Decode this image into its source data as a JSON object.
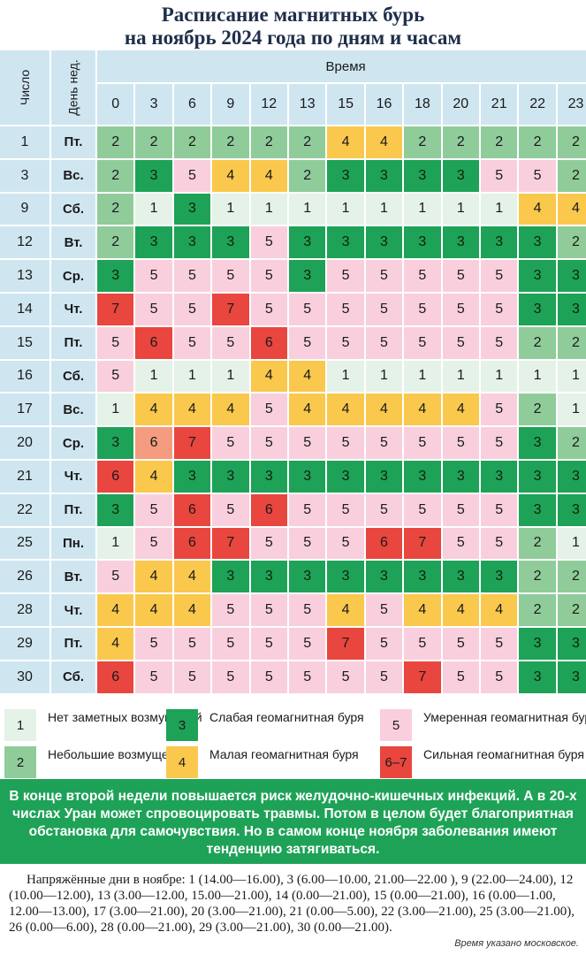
{
  "title": {
    "line1": "Расписание магнитных бурь",
    "line2": "на ноябрь 2024 года по дням и часам"
  },
  "chart_data": {
    "type": "table",
    "header": {
      "day_label": "Число",
      "weekday_label": "День нед.",
      "time_label": "Время"
    },
    "hours": [
      "0",
      "3",
      "6",
      "9",
      "12",
      "13",
      "15",
      "16",
      "18",
      "20",
      "21",
      "22",
      "23"
    ],
    "rows": [
      {
        "day": "1",
        "weekday": "Пт.",
        "values": [
          2,
          2,
          2,
          2,
          2,
          2,
          4,
          4,
          2,
          2,
          2,
          2,
          2
        ]
      },
      {
        "day": "3",
        "weekday": "Вс.",
        "values": [
          2,
          3,
          5,
          4,
          4,
          2,
          3,
          3,
          3,
          3,
          5,
          5,
          2
        ]
      },
      {
        "day": "9",
        "weekday": "Сб.",
        "values": [
          2,
          1,
          3,
          1,
          1,
          1,
          1,
          1,
          1,
          1,
          1,
          4,
          4
        ]
      },
      {
        "day": "12",
        "weekday": "Вт.",
        "values": [
          2,
          3,
          3,
          3,
          5,
          3,
          3,
          3,
          3,
          3,
          3,
          3,
          2
        ]
      },
      {
        "day": "13",
        "weekday": "Ср.",
        "values": [
          3,
          5,
          5,
          5,
          5,
          3,
          5,
          5,
          5,
          5,
          5,
          3,
          3
        ]
      },
      {
        "day": "14",
        "weekday": "Чт.",
        "values": [
          7,
          5,
          5,
          7,
          5,
          5,
          5,
          5,
          5,
          5,
          5,
          3,
          3
        ]
      },
      {
        "day": "15",
        "weekday": "Пт.",
        "values": [
          5,
          6,
          5,
          5,
          6,
          5,
          5,
          5,
          5,
          5,
          5,
          2,
          2
        ]
      },
      {
        "day": "16",
        "weekday": "Сб.",
        "values": [
          5,
          1,
          1,
          1,
          4,
          4,
          1,
          1,
          1,
          1,
          1,
          1,
          1
        ]
      },
      {
        "day": "17",
        "weekday": "Вс.",
        "values": [
          1,
          4,
          4,
          4,
          5,
          4,
          4,
          4,
          4,
          4,
          5,
          2,
          1
        ]
      },
      {
        "day": "20",
        "weekday": "Ср.",
        "values": [
          3,
          6,
          7,
          5,
          5,
          5,
          5,
          5,
          5,
          5,
          5,
          3,
          2
        ]
      },
      {
        "day": "21",
        "weekday": "Чт.",
        "values": [
          6,
          4,
          3,
          3,
          3,
          3,
          3,
          3,
          3,
          3,
          3,
          3,
          3
        ]
      },
      {
        "day": "22",
        "weekday": "Пт.",
        "values": [
          3,
          5,
          6,
          5,
          6,
          5,
          5,
          5,
          5,
          5,
          5,
          3,
          3
        ]
      },
      {
        "day": "25",
        "weekday": "Пн.",
        "values": [
          1,
          5,
          6,
          7,
          5,
          5,
          5,
          6,
          7,
          5,
          5,
          2,
          1
        ]
      },
      {
        "day": "26",
        "weekday": "Вт.",
        "values": [
          5,
          4,
          4,
          3,
          3,
          3,
          3,
          3,
          3,
          3,
          3,
          2,
          2
        ]
      },
      {
        "day": "28",
        "weekday": "Чт.",
        "values": [
          4,
          4,
          4,
          5,
          5,
          5,
          4,
          5,
          4,
          4,
          4,
          2,
          2
        ]
      },
      {
        "day": "29",
        "weekday": "Пт.",
        "values": [
          4,
          5,
          5,
          5,
          5,
          5,
          7,
          5,
          5,
          5,
          5,
          3,
          3
        ]
      },
      {
        "day": "30",
        "weekday": "Сб.",
        "values": [
          6,
          5,
          5,
          5,
          5,
          5,
          5,
          5,
          7,
          5,
          5,
          3,
          3
        ]
      }
    ],
    "light_sixes": [
      [
        9,
        1
      ]
    ],
    "colors": {
      "1": "#e4f2e8",
      "2": "#8fcc9a",
      "3": "#1ea257",
      "4": "#fac84d",
      "5": "#f9cfdd",
      "6": "#e8463e",
      "7": "#e8463e",
      "6-light": "#f49b80"
    }
  },
  "legend": [
    {
      "code": "1",
      "label": "Нет заметных возмущений",
      "color": "#e4f2e8"
    },
    {
      "code": "3",
      "label": "Слабая геомагнитная буря",
      "color": "#1ea257"
    },
    {
      "code": "5",
      "label": "Умеренная геомагнитная буря",
      "color": "#f9cfdd"
    },
    {
      "code": "2",
      "label": "Небольшие возмущения",
      "color": "#8fcc9a"
    },
    {
      "code": "4",
      "label": "Малая геомагнитная буря",
      "color": "#fac84d"
    },
    {
      "code": "6–7",
      "label": "Сильная геомагнитная буря",
      "color": "#e8463e"
    }
  ],
  "note": "В конце второй недели повышается риск желудочно-кишечных инфекций. А в 20-х числах Уран может спровоцировать травмы. Потом в целом будет благоприятная обстановка для самочувствия. Но в самом конце ноября заболевания имеют тенденцию затягиваться.",
  "tense_days": "Напряжённые дни в ноябре: 1 (14.00—16.00), 3 (6.00—10.00, 21.00—22.00 ), 9 (22.00—24.00), 12 (10.00—12.00), 13 (3.00—12.00, 15.00—21.00), 14 (0.00—21.00), 15 (0.00—21.00), 16 (0.00—1.00, 12.00—13.00), 17 (3.00—21.00), 20 (3.00—21.00), 21 (0.00—5.00), 22 (3.00—21.00), 25 (3.00—21.00), 26 (0.00—6.00), 28 (0.00—21.00), 29 (3.00—21.00), 30 (0.00—21.00).",
  "footer": "Время указано московское."
}
